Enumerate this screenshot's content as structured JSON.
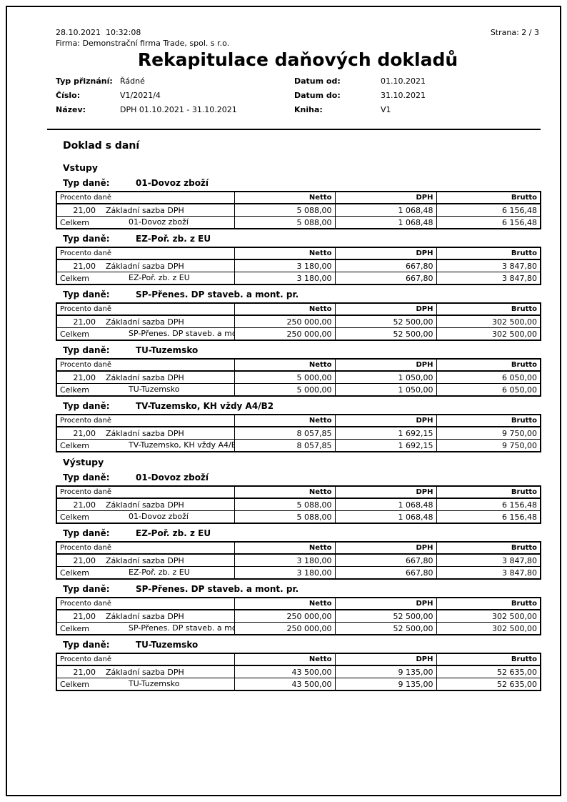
{
  "colors": {
    "text": "#000000",
    "background": "#ffffff",
    "border": "#000000"
  },
  "page": {
    "printed_at": "28.10.2021  10:32:08",
    "company_line": "Firma: Demonstrační firma Trade, spol. s r.o.",
    "page_label": "Strana: 2 / 3",
    "title": "Rekapitulace daňových dokladů"
  },
  "meta": {
    "left": [
      {
        "label": "Typ přiznání:",
        "value": "Řádné"
      },
      {
        "label": "Číslo:",
        "value": "V1/2021/4"
      },
      {
        "label": "Název:",
        "value": "DPH 01.10.2021 - 31.10.2021"
      }
    ],
    "right": [
      {
        "label": "Datum od:",
        "value": "01.10.2021"
      },
      {
        "label": "Datum do:",
        "value": "31.10.2021"
      },
      {
        "label": "Kniha:",
        "value": "V1"
      }
    ]
  },
  "report": {
    "group_heading": "Doklad s daní",
    "tax_type_label": "Typ daně:",
    "total_label": "Celkem",
    "table_header": {
      "col1": "Procento daně",
      "netto": "Netto",
      "dph": "DPH",
      "brutto": "Brutto"
    },
    "sections": [
      {
        "heading": "Vstupy",
        "tables": [
          {
            "tax_type": "01-Dovoz zboží",
            "rows": [
              {
                "percent": "21,00",
                "label": "Základní sazba DPH",
                "netto": "5 088,00",
                "dph": "1 068,48",
                "brutto": "6 156,48"
              }
            ],
            "total": {
              "netto": "5 088,00",
              "dph": "1 068,48",
              "brutto": "6 156,48"
            }
          },
          {
            "tax_type": "EZ-Poř. zb. z EU",
            "rows": [
              {
                "percent": "21,00",
                "label": "Základní sazba DPH",
                "netto": "3 180,00",
                "dph": "667,80",
                "brutto": "3 847,80"
              }
            ],
            "total": {
              "netto": "3 180,00",
              "dph": "667,80",
              "brutto": "3 847,80"
            }
          },
          {
            "tax_type": "SP-Přenes. DP staveb. a mont. pr.",
            "rows": [
              {
                "percent": "21,00",
                "label": "Základní sazba DPH",
                "netto": "250 000,00",
                "dph": "52 500,00",
                "brutto": "302 500,00"
              }
            ],
            "total": {
              "netto": "250 000,00",
              "dph": "52 500,00",
              "brutto": "302 500,00"
            }
          },
          {
            "tax_type": "TU-Tuzemsko",
            "rows": [
              {
                "percent": "21,00",
                "label": "Základní sazba DPH",
                "netto": "5 000,00",
                "dph": "1 050,00",
                "brutto": "6 050,00"
              }
            ],
            "total": {
              "netto": "5 000,00",
              "dph": "1 050,00",
              "brutto": "6 050,00"
            }
          },
          {
            "tax_type": "TV-Tuzemsko, KH vždy A4/B2",
            "rows": [
              {
                "percent": "21,00",
                "label": "Základní sazba DPH",
                "netto": "8 057,85",
                "dph": "1 692,15",
                "brutto": "9 750,00"
              }
            ],
            "total": {
              "netto": "8 057,85",
              "dph": "1 692,15",
              "brutto": "9 750,00"
            }
          }
        ]
      },
      {
        "heading": "Výstupy",
        "tables": [
          {
            "tax_type": "01-Dovoz zboží",
            "rows": [
              {
                "percent": "21,00",
                "label": "Základní sazba DPH",
                "netto": "5 088,00",
                "dph": "1 068,48",
                "brutto": "6 156,48"
              }
            ],
            "total": {
              "netto": "5 088,00",
              "dph": "1 068,48",
              "brutto": "6 156,48"
            }
          },
          {
            "tax_type": "EZ-Poř. zb. z EU",
            "rows": [
              {
                "percent": "21,00",
                "label": "Základní sazba DPH",
                "netto": "3 180,00",
                "dph": "667,80",
                "brutto": "3 847,80"
              }
            ],
            "total": {
              "netto": "3 180,00",
              "dph": "667,80",
              "brutto": "3 847,80"
            }
          },
          {
            "tax_type": "SP-Přenes. DP staveb. a mont. pr.",
            "rows": [
              {
                "percent": "21,00",
                "label": "Základní sazba DPH",
                "netto": "250 000,00",
                "dph": "52 500,00",
                "brutto": "302 500,00"
              }
            ],
            "total": {
              "netto": "250 000,00",
              "dph": "52 500,00",
              "brutto": "302 500,00"
            }
          },
          {
            "tax_type": "TU-Tuzemsko",
            "rows": [
              {
                "percent": "21,00",
                "label": "Základní sazba DPH",
                "netto": "43 500,00",
                "dph": "9 135,00",
                "brutto": "52 635,00"
              }
            ],
            "total": {
              "netto": "43 500,00",
              "dph": "9 135,00",
              "brutto": "52 635,00"
            }
          }
        ]
      }
    ]
  }
}
